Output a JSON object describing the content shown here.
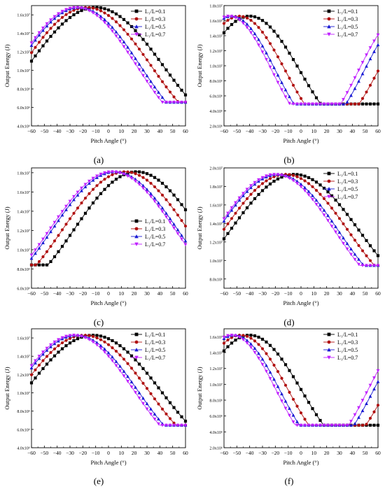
{
  "chart_data": [
    {
      "panel": "a",
      "caption": "(a)",
      "type": "line",
      "xlabel": "Pitch Angle (°)",
      "ylabel": "Output Energy (J)",
      "xlim": [
        -60,
        60
      ],
      "ylim": [
        4000000.0,
        17000000.0
      ],
      "yticks": [
        4000000.0,
        6000000.0,
        8000000.0,
        10000000.0,
        12000000.0,
        14000000.0,
        16000000.0
      ],
      "yticklabels": [
        "4.0x10⁶",
        "6.0x10⁶",
        "8.0x10⁶",
        "1.0x10⁷",
        "1.2x10⁷",
        "1.4x10⁷",
        "1.6x10⁷"
      ],
      "legend_position": "top-right",
      "series": [
        {
          "name": "L₁/L=0.1",
          "peak_x": -10,
          "peak_y": 16800000.0,
          "width": 65,
          "color": "#000000",
          "marker": "square"
        },
        {
          "name": "L₁/L=0.3",
          "peak_x": -17,
          "peak_y": 16800000.0,
          "width": 62,
          "color": "#b01010",
          "marker": "circle"
        },
        {
          "name": "L₁/L=0.5",
          "peak_x": -23,
          "peak_y": 16800000.0,
          "width": 59,
          "color": "#1a1ad4",
          "marker": "triangle-up"
        },
        {
          "name": "L₁/L=0.7",
          "peak_x": -25,
          "peak_y": 16800000.0,
          "width": 58,
          "color": "#c020ff",
          "marker": "triangle-down"
        }
      ]
    },
    {
      "panel": "b",
      "caption": "(b)",
      "type": "line",
      "xlabel": "Pitch Angle (°)",
      "ylabel": "Output Energy (J)",
      "xlim": [
        -60,
        60
      ],
      "ylim": [
        2000000.0,
        18000000.0
      ],
      "yticks": [
        2000000.0,
        4000000.0,
        6000000.0,
        8000000.0,
        10000000.0,
        12000000.0,
        14000000.0,
        16000000.0,
        18000000.0
      ],
      "yticklabels": [
        "2.0x10⁶",
        "4.0x10⁶",
        "6.0x10⁶",
        "8.0x10⁶",
        "1.0x10⁷",
        "1.2x10⁷",
        "1.4x10⁷",
        "1.6x10⁷",
        "1.8x10⁷"
      ],
      "legend_position": "top-right",
      "series": [
        {
          "name": "L₁/L=0.1",
          "peak_x": -40,
          "peak_y": 16600000.0,
          "width": 48,
          "color": "#000000",
          "marker": "square"
        },
        {
          "name": "L₁/L=0.3",
          "peak_x": -48,
          "peak_y": 16600000.0,
          "width": 44,
          "color": "#b01010",
          "marker": "circle"
        },
        {
          "name": "L₁/L=0.5",
          "peak_x": -54,
          "peak_y": 16600000.0,
          "width": 42,
          "color": "#1a1ad4",
          "marker": "triangle-up"
        },
        {
          "name": "L₁/L=0.7",
          "peak_x": -56,
          "peak_y": 16600000.0,
          "width": 41,
          "color": "#c020ff",
          "marker": "triangle-down"
        }
      ]
    },
    {
      "panel": "c",
      "caption": "(c)",
      "type": "line",
      "xlabel": "Pitch Angle (°)",
      "ylabel": "Output Energy (J)",
      "xlim": [
        -60,
        60
      ],
      "ylim": [
        6000000.0,
        18500000.0
      ],
      "yticks": [
        6000000.0,
        8000000.0,
        10000000.0,
        12000000.0,
        14000000.0,
        16000000.0,
        18000000.0
      ],
      "yticklabels": [
        "6.0x10⁶",
        "8.0x10⁶",
        "1.0x10⁷",
        "1.2x10⁷",
        "1.4x10⁷",
        "1.6x10⁷",
        "1.8x10⁷"
      ],
      "legend_position": "center-right",
      "series": [
        {
          "name": "L₁/L=0.1",
          "peak_x": 22,
          "peak_y": 18100000.0,
          "width": 60,
          "color": "#000000",
          "marker": "square"
        },
        {
          "name": "L₁/L=0.3",
          "peak_x": 13,
          "peak_y": 18100000.0,
          "width": 60,
          "color": "#b01010",
          "marker": "circle"
        },
        {
          "name": "L₁/L=0.5",
          "peak_x": 5,
          "peak_y": 18100000.0,
          "width": 60,
          "color": "#1a1ad4",
          "marker": "triangle-up"
        },
        {
          "name": "L₁/L=0.7",
          "peak_x": 3,
          "peak_y": 18100000.0,
          "width": 60,
          "color": "#c020ff",
          "marker": "triangle-down"
        }
      ]
    },
    {
      "panel": "d",
      "caption": "(d)",
      "type": "line",
      "xlabel": "Pitch Angle (°)",
      "ylabel": "Output Energy (J)",
      "xlim": [
        -60,
        60
      ],
      "ylim": [
        7000000.0,
        20000000.0
      ],
      "yticks": [
        8000000.0,
        10000000.0,
        12000000.0,
        14000000.0,
        16000000.0,
        18000000.0,
        20000000.0
      ],
      "yticklabels": [
        "8.0x10⁶",
        "1.0x10⁷",
        "1.2x10⁷",
        "1.4x10⁷",
        "1.6x10⁷",
        "1.8x10⁷",
        "2.0x10⁷"
      ],
      "legend_position": "top-right",
      "series": [
        {
          "name": "L₁/L=0.1",
          "peak_x": -5,
          "peak_y": 19300000.0,
          "width": 62,
          "color": "#000000",
          "marker": "square"
        },
        {
          "name": "L₁/L=0.3",
          "peak_x": -12,
          "peak_y": 19300000.0,
          "width": 60,
          "color": "#b01010",
          "marker": "circle"
        },
        {
          "name": "L₁/L=0.5",
          "peak_x": -18,
          "peak_y": 19300000.0,
          "width": 58,
          "color": "#1a1ad4",
          "marker": "triangle-up"
        },
        {
          "name": "L₁/L=0.7",
          "peak_x": -20,
          "peak_y": 19300000.0,
          "width": 57,
          "color": "#c020ff",
          "marker": "triangle-down"
        }
      ]
    },
    {
      "panel": "e",
      "caption": "(e)",
      "type": "line",
      "xlabel": "Pitch Angle (°)",
      "ylabel": "Output Energy (J)",
      "xlim": [
        -60,
        60
      ],
      "ylim": [
        4000000.0,
        17000000.0
      ],
      "yticks": [
        4000000.0,
        6000000.0,
        8000000.0,
        10000000.0,
        12000000.0,
        14000000.0,
        16000000.0
      ],
      "yticklabels": [
        "4.0x10⁶",
        "6.0x10⁶",
        "8.0x10⁶",
        "1.0x10⁷",
        "1.2x10⁷",
        "1.4x10⁷",
        "1.6x10⁷"
      ],
      "legend_position": "top-right",
      "series": [
        {
          "name": "L₁/L=0.1",
          "peak_x": -12,
          "peak_y": 16300000.0,
          "width": 65,
          "color": "#000000",
          "marker": "square"
        },
        {
          "name": "L₁/L=0.3",
          "peak_x": -19,
          "peak_y": 16300000.0,
          "width": 62,
          "color": "#b01010",
          "marker": "circle"
        },
        {
          "name": "L₁/L=0.5",
          "peak_x": -25,
          "peak_y": 16300000.0,
          "width": 59,
          "color": "#1a1ad4",
          "marker": "triangle-up"
        },
        {
          "name": "L₁/L=0.7",
          "peak_x": -27,
          "peak_y": 16300000.0,
          "width": 58,
          "color": "#c020ff",
          "marker": "triangle-down"
        }
      ]
    },
    {
      "panel": "f",
      "caption": "(f)",
      "type": "line",
      "xlabel": "Pitch Angle (°)",
      "ylabel": "Output Energy (J)",
      "xlim": [
        -60,
        60
      ],
      "ylim": [
        2000000.0,
        17000000.0
      ],
      "yticks": [
        2000000.0,
        4000000.0,
        6000000.0,
        8000000.0,
        10000000.0,
        12000000.0,
        14000000.0,
        16000000.0
      ],
      "yticklabels": [
        "2.0x10⁶",
        "4.0x10⁶",
        "6.0x10⁶",
        "8.0x10⁶",
        "1.0x10⁷",
        "1.2x10⁷",
        "1.4x10⁷",
        "1.6x10⁷"
      ],
      "legend_position": "top-right",
      "series": [
        {
          "name": "L₁/L=0.1",
          "peak_x": -40,
          "peak_y": 16200000.0,
          "width": 50,
          "color": "#000000",
          "marker": "square"
        },
        {
          "name": "L₁/L=0.3",
          "peak_x": -47,
          "peak_y": 16200000.0,
          "width": 46,
          "color": "#b01010",
          "marker": "circle"
        },
        {
          "name": "L₁/L=0.5",
          "peak_x": -52,
          "peak_y": 16200000.0,
          "width": 44,
          "color": "#1a1ad4",
          "marker": "triangle-up"
        },
        {
          "name": "L₁/L=0.7",
          "peak_x": -54,
          "peak_y": 16200000.0,
          "width": 43,
          "color": "#c020ff",
          "marker": "triangle-down"
        }
      ]
    }
  ]
}
